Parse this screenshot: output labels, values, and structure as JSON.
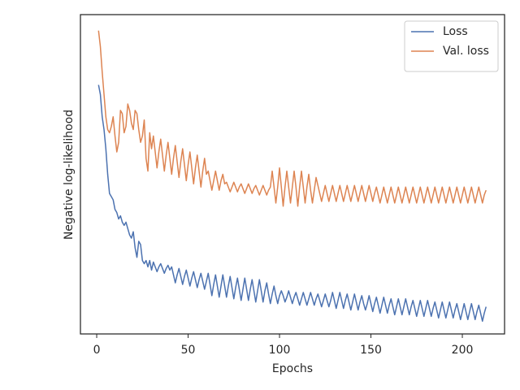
{
  "chart_data": {
    "type": "line",
    "xlabel": "Epochs",
    "ylabel": "Negative log-likelihood",
    "xlim": [
      -8.9,
      223.1
    ],
    "ylim": [
      0,
      100
    ],
    "xticks": [
      0,
      50,
      100,
      150,
      200
    ],
    "legend": "upper right",
    "grid": false,
    "x": [
      1,
      2,
      3,
      4,
      5,
      6,
      7,
      8,
      9,
      10,
      11,
      12,
      13,
      14,
      15,
      16,
      17,
      18,
      19,
      20,
      21,
      22,
      23,
      24,
      25,
      26,
      27,
      28,
      29,
      30,
      31,
      32,
      33,
      34,
      35,
      36,
      37,
      38,
      39,
      40,
      41,
      42,
      43,
      44,
      45,
      46,
      47,
      48,
      49,
      50,
      51,
      52,
      53,
      54,
      55,
      56,
      57,
      58,
      59,
      60,
      61,
      62,
      63,
      64,
      65,
      66,
      67,
      68,
      69,
      70,
      71,
      72,
      73,
      74,
      75,
      76,
      77,
      78,
      79,
      80,
      81,
      82,
      83,
      84,
      85,
      86,
      87,
      88,
      89,
      90,
      91,
      92,
      93,
      94,
      95,
      96,
      97,
      98,
      99,
      100,
      101,
      102,
      103,
      104,
      105,
      106,
      107,
      108,
      109,
      110,
      111,
      112,
      113,
      114,
      115,
      116,
      117,
      118,
      119,
      120,
      121,
      122,
      123,
      124,
      125,
      126,
      127,
      128,
      129,
      130,
      131,
      132,
      133,
      134,
      135,
      136,
      137,
      138,
      139,
      140,
      141,
      142,
      143,
      144,
      145,
      146,
      147,
      148,
      149,
      150,
      151,
      152,
      153,
      154,
      155,
      156,
      157,
      158,
      159,
      160,
      161,
      162,
      163,
      164,
      165,
      166,
      167,
      168,
      169,
      170,
      171,
      172,
      173,
      174,
      175,
      176,
      177,
      178,
      179,
      180,
      181,
      182,
      183,
      184,
      185,
      186,
      187,
      188,
      189,
      190,
      191,
      192,
      193,
      194,
      195,
      196,
      197,
      198,
      199,
      200,
      201,
      202,
      203,
      204,
      205,
      206,
      207,
      208,
      209,
      210,
      211,
      212,
      213
    ],
    "series": [
      {
        "name": "Loss",
        "color": "#4c72b0",
        "values": [
          78,
          75,
          68,
          64,
          58,
          50,
          44,
          43,
          42,
          39,
          38,
          36,
          37,
          35,
          34,
          35,
          33,
          31,
          30,
          32,
          27,
          24,
          29,
          28,
          23,
          22,
          23,
          21,
          23,
          20,
          22.5,
          21,
          19.5,
          21,
          22,
          20.5,
          19,
          20.5,
          21.5,
          20,
          21,
          18.5,
          16,
          18.5,
          20.5,
          18,
          15.5,
          18,
          20,
          17.5,
          15,
          17.5,
          19.5,
          17,
          14.5,
          17,
          19,
          16.5,
          14,
          16.5,
          19,
          15.5,
          12,
          15.5,
          18.5,
          15,
          11.5,
          15,
          18.5,
          15,
          11.5,
          15,
          18,
          14.5,
          11,
          14.5,
          17.5,
          14,
          10.5,
          14,
          17.5,
          14,
          10.5,
          14,
          17,
          13.5,
          10,
          13.5,
          17,
          13.5,
          10,
          13.5,
          16,
          12.5,
          9.5,
          12.5,
          15,
          12,
          9.5,
          12,
          13.5,
          12,
          10,
          11.5,
          13.5,
          11.5,
          9.5,
          11.5,
          13,
          11,
          9,
          11,
          13,
          11,
          9,
          11,
          13,
          11,
          9,
          11,
          12.5,
          10.5,
          8.5,
          10.5,
          12.5,
          10.5,
          8.5,
          10.5,
          13,
          10.5,
          8,
          10.5,
          13,
          10.5,
          8,
          10.5,
          12.5,
          10,
          7.5,
          10,
          12.5,
          10,
          7.5,
          10,
          12,
          9.5,
          7.5,
          9.5,
          12,
          9.5,
          7,
          9.5,
          11.5,
          9,
          6.5,
          9,
          11.5,
          9,
          6.5,
          9,
          11,
          8.5,
          6,
          8.5,
          11,
          8.5,
          6,
          8.5,
          11,
          8.5,
          6,
          8.5,
          10.5,
          8,
          5.5,
          8,
          10.5,
          8,
          5.5,
          8,
          10.5,
          8,
          5.5,
          8,
          10,
          7.5,
          5,
          7.5,
          10,
          7.5,
          5,
          7.5,
          10,
          7.5,
          5,
          7.5,
          9.5,
          7,
          4.5,
          7,
          9.5,
          7,
          4.5,
          7,
          9.5,
          7,
          4.5,
          7,
          9,
          6.5,
          4,
          6.5,
          8.5
        ]
      },
      {
        "name": "Val. loss",
        "color": "#dd8452",
        "values": [
          95,
          90,
          82,
          75,
          68,
          64,
          63,
          65,
          68,
          62,
          57,
          60,
          70,
          69,
          63,
          65,
          72,
          70,
          66,
          64,
          70,
          69,
          64,
          60,
          62,
          67,
          55,
          51,
          63,
          58,
          62,
          57,
          52,
          57,
          61,
          56,
          51,
          56,
          60,
          55,
          50,
          55,
          59,
          54,
          49,
          54,
          58,
          53,
          48,
          53,
          57,
          52,
          47,
          52,
          56,
          51,
          46,
          51,
          55,
          50,
          51,
          48,
          45,
          48,
          51,
          48,
          45,
          48,
          50,
          47,
          47.5,
          46,
          44.5,
          46,
          47.5,
          46,
          44.5,
          46,
          47,
          45.5,
          44,
          45.5,
          47,
          45.5,
          44,
          45.5,
          46.5,
          45,
          43.5,
          45,
          46.5,
          45,
          43.5,
          45,
          46,
          51,
          46,
          41,
          46,
          52,
          46,
          40,
          46,
          51,
          46,
          41,
          46,
          51,
          46,
          40,
          46,
          51,
          46,
          41,
          46,
          50,
          45,
          41,
          45,
          49,
          46.5,
          44,
          41.5,
          44,
          46.5,
          44,
          41.5,
          44,
          46.5,
          44,
          41.5,
          44,
          46.5,
          44,
          41.5,
          44,
          46.5,
          44,
          41.5,
          44,
          46.5,
          44,
          41.5,
          44,
          46.5,
          44,
          41.5,
          44,
          46.5,
          44,
          41.5,
          44,
          46,
          43.5,
          41,
          43.5,
          46,
          43.5,
          41,
          43.5,
          46,
          43.5,
          41,
          43.5,
          46,
          43.5,
          41,
          43.5,
          46,
          43.5,
          41,
          43.5,
          46,
          43.5,
          41,
          43.5,
          46,
          43.5,
          41,
          43.5,
          46,
          43.5,
          41,
          43.5,
          46,
          43.5,
          41,
          43.5,
          46,
          43.5,
          41,
          43.5,
          46,
          43.5,
          41,
          43.5,
          46,
          43.5,
          41,
          43.5,
          46,
          43.5,
          41,
          43.5,
          46,
          43.5,
          41,
          43.5,
          46,
          43.5,
          41,
          43.5,
          45
        ]
      }
    ]
  }
}
